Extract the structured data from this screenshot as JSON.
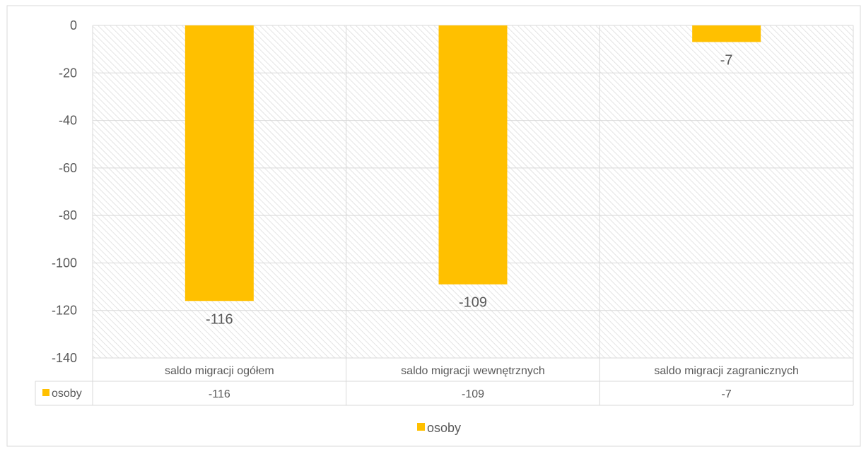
{
  "chart_data": {
    "type": "bar",
    "title": "",
    "xlabel": "",
    "ylabel": "",
    "categories": [
      "saldo migracji ogółem",
      "saldo migracji wewnętrznych",
      "saldo migracji zagranicznych"
    ],
    "series": [
      {
        "name": "osoby",
        "values": [
          -116,
          -109,
          -7
        ],
        "color": "#FFC000"
      }
    ],
    "ylim": [
      -140,
      0
    ],
    "yticks": [
      0,
      -20,
      -40,
      -60,
      -80,
      -100,
      -120,
      -140
    ],
    "data_labels": [
      "-116",
      "-109",
      "-7"
    ],
    "data_table": {
      "series_label": "osoby",
      "values": [
        "-116",
        "-109",
        "-7"
      ]
    },
    "legend": {
      "position": "bottom",
      "label": "osoby"
    },
    "grid": true,
    "plot_background": "hatched"
  }
}
